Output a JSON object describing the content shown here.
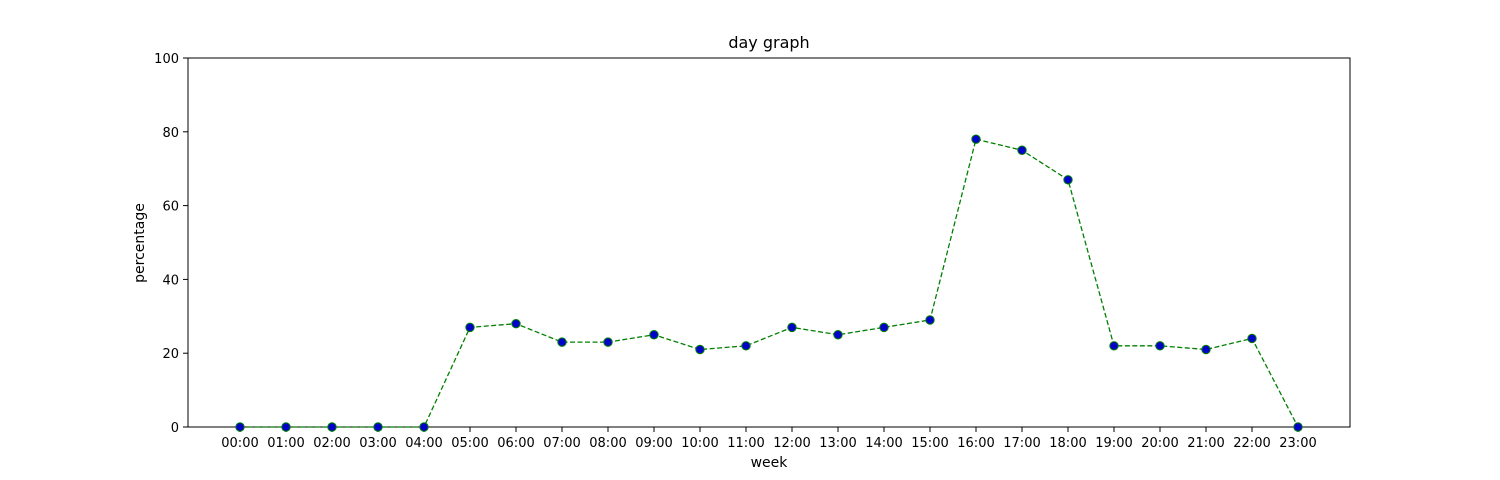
{
  "chart_data": {
    "type": "line",
    "title": "day graph",
    "xlabel": "week",
    "ylabel": "percentage",
    "ylim": [
      0,
      100
    ],
    "yticks": [
      0,
      20,
      40,
      60,
      80,
      100
    ],
    "grid": false,
    "categories": [
      "00:00",
      "01:00",
      "02:00",
      "03:00",
      "04:00",
      "05:00",
      "06:00",
      "07:00",
      "08:00",
      "09:00",
      "10:00",
      "11:00",
      "12:00",
      "13:00",
      "14:00",
      "15:00",
      "16:00",
      "17:00",
      "18:00",
      "19:00",
      "20:00",
      "21:00",
      "22:00",
      "23:00"
    ],
    "series": [
      {
        "values": [
          0,
          0,
          0,
          0,
          0,
          27,
          28,
          23,
          23,
          25,
          21,
          22,
          27,
          25,
          27,
          29,
          78,
          75,
          67,
          22,
          22,
          21,
          24,
          0
        ],
        "line_color": "#008000",
        "line_style": "dashed",
        "marker_face_color": "#0000cc",
        "marker_edge_color": "#008000"
      }
    ]
  }
}
